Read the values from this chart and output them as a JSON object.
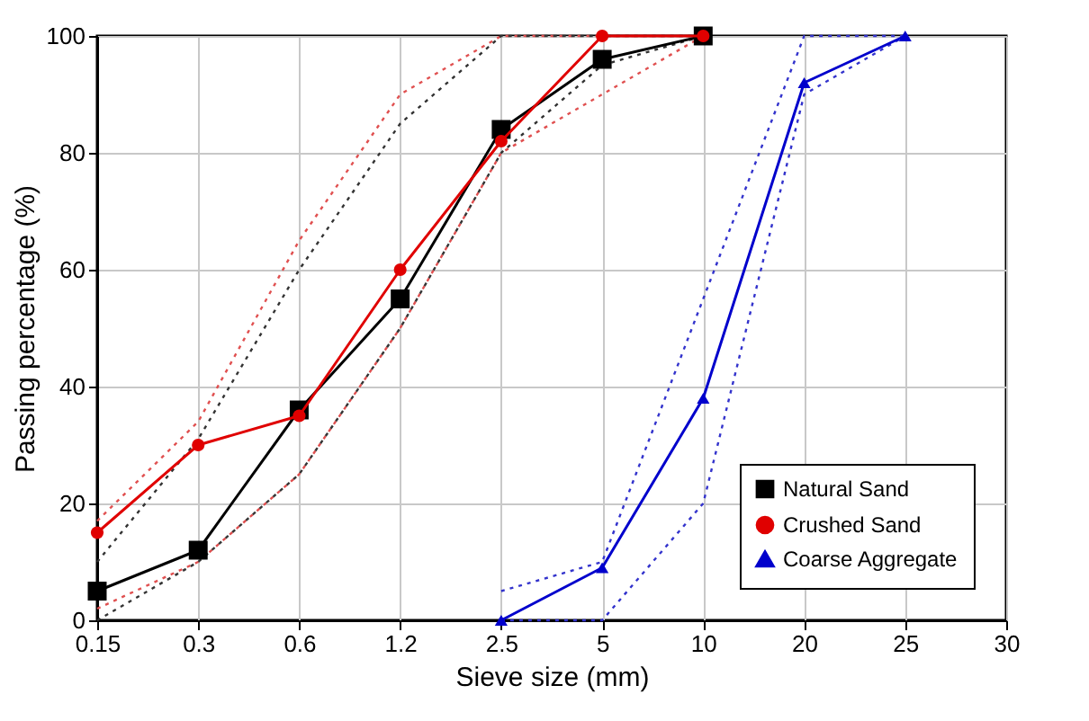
{
  "chart_data": {
    "type": "line",
    "xlabel": "Sieve size (mm)",
    "ylabel": "Passing percentage (%)",
    "categories": [
      "0.15",
      "0.3",
      "0.6",
      "1.2",
      "2.5",
      "5",
      "10",
      "20",
      "25",
      "30"
    ],
    "ylim": [
      0,
      100
    ],
    "yticks": [
      0,
      20,
      40,
      60,
      80,
      100
    ],
    "grid": true,
    "legend": "bottom right",
    "series": [
      {
        "color": "#e05050",
        "line_style": "dotted",
        "marker": "none",
        "values": [
          17,
          34,
          65,
          90,
          100,
          100,
          100,
          null,
          null,
          null
        ]
      },
      {
        "color": "#e05050",
        "line_style": "dotted",
        "marker": "none",
        "values": [
          2,
          10,
          25,
          50,
          80,
          90,
          100,
          null,
          null,
          null
        ]
      },
      {
        "color": "#333333",
        "line_style": "dotted",
        "marker": "none",
        "values": [
          10,
          31,
          60,
          85,
          100,
          100,
          100,
          null,
          null,
          null
        ]
      },
      {
        "color": "#333333",
        "line_style": "dotted",
        "marker": "none",
        "values": [
          0,
          10,
          25,
          50,
          80,
          95,
          100,
          null,
          null,
          null
        ]
      },
      {
        "color": "#3333cc",
        "line_style": "dotted",
        "marker": "none",
        "values": [
          null,
          null,
          null,
          null,
          5,
          10,
          55,
          100,
          100,
          null
        ]
      },
      {
        "color": "#3333cc",
        "line_style": "dotted",
        "marker": "none",
        "values": [
          null,
          null,
          null,
          null,
          0,
          0,
          20,
          90,
          100,
          null
        ]
      },
      {
        "name": "Natural Sand",
        "color": "#000000",
        "line_style": "solid",
        "marker": "square",
        "values": [
          5,
          12,
          36,
          55,
          84,
          96,
          100,
          null,
          null,
          null
        ]
      },
      {
        "name": "Crushed Sand",
        "color": "#e00000",
        "line_style": "solid",
        "marker": "circle",
        "values": [
          15,
          30,
          35,
          60,
          82,
          100,
          100,
          null,
          null,
          null
        ]
      },
      {
        "name": "Coarse Aggregate",
        "color": "#0000cc",
        "line_style": "solid",
        "marker": "triangle",
        "values": [
          null,
          null,
          null,
          null,
          0,
          9,
          38,
          92,
          100,
          null
        ]
      }
    ]
  }
}
